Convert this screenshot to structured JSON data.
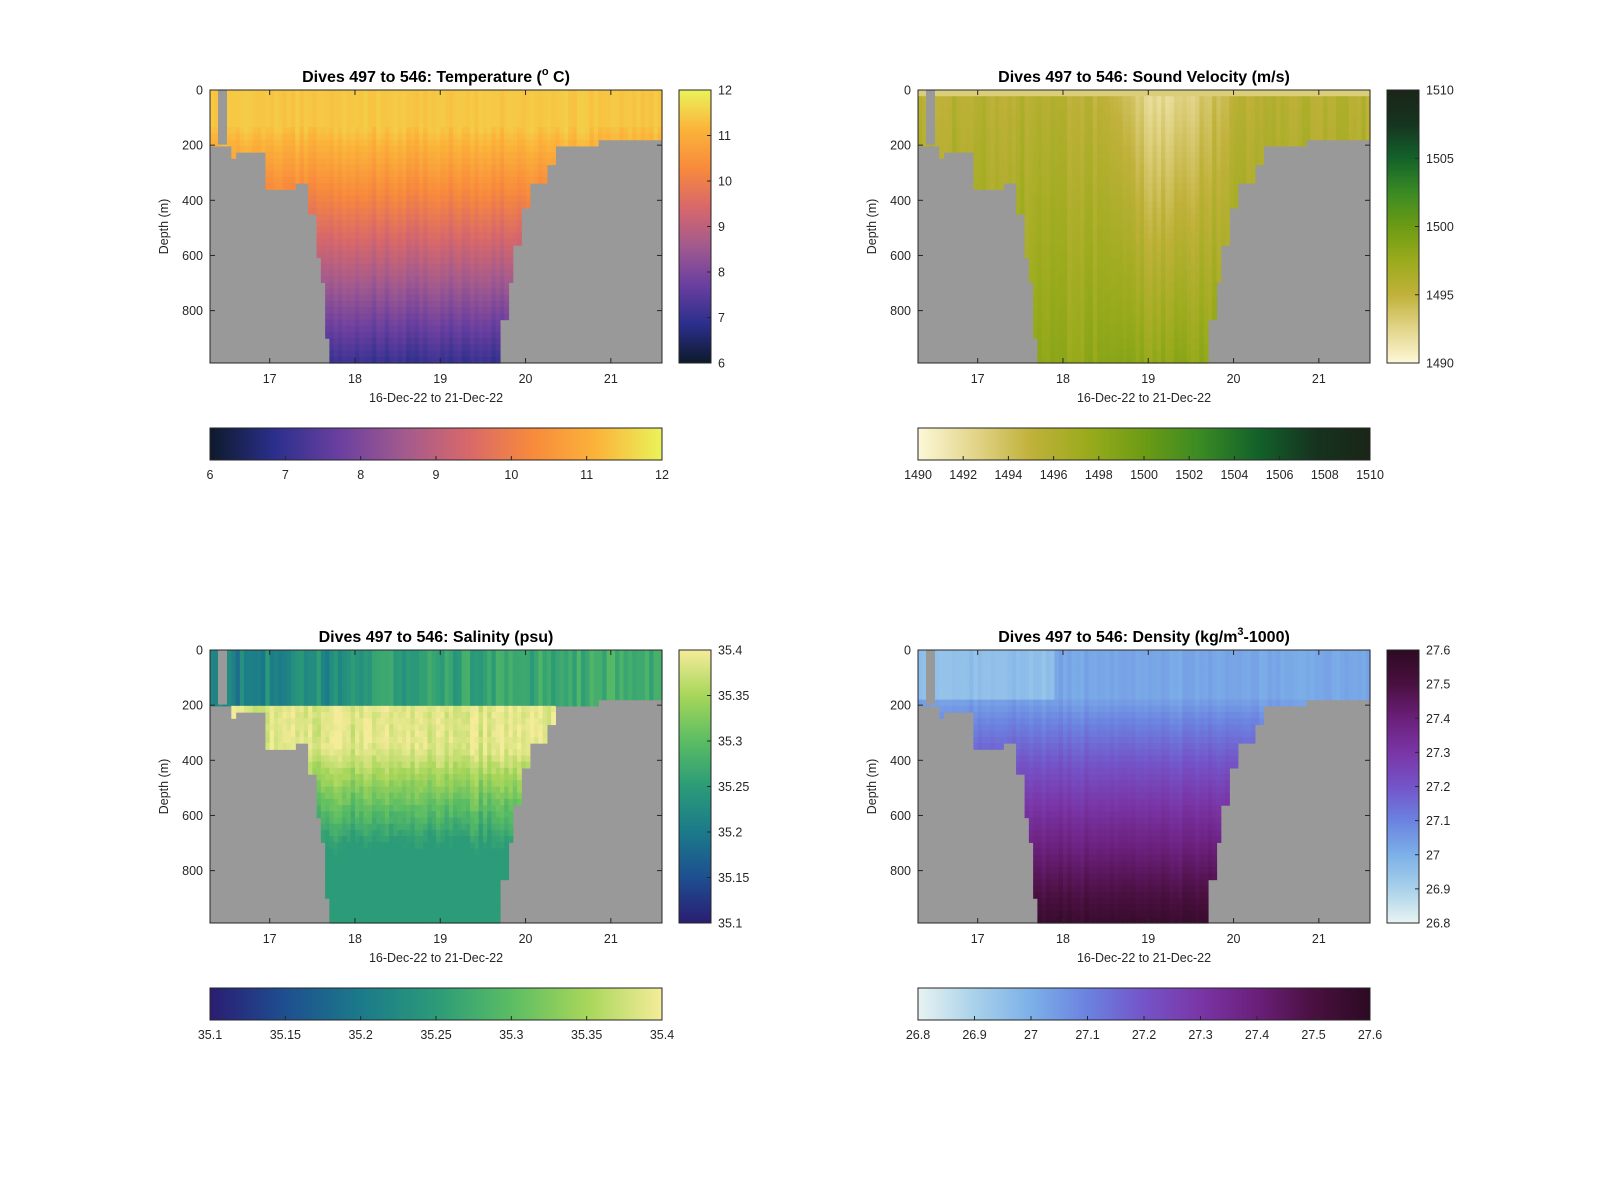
{
  "figure": {
    "background": "#ffffff",
    "land_color": "#999999"
  },
  "chart_data": [
    {
      "type": "heatmap",
      "key": "temperature",
      "title_main": "Dives 497 to 546: Temperature (",
      "title_sup": "o",
      "title_end": " C)",
      "xlabel": "16-Dec-22 to 21-Dec-22",
      "ylabel": "Depth (m)",
      "x_range": [
        16.3,
        21.6
      ],
      "x_ticks": [
        "17",
        "18",
        "19",
        "20",
        "21"
      ],
      "y_range": [
        0,
        990
      ],
      "y_ticks": [
        "0",
        "200",
        "400",
        "600",
        "800"
      ],
      "colorbar_range": [
        6,
        12
      ],
      "colorbar_right_ticks": [
        "6",
        "7",
        "8",
        "9",
        "10",
        "11",
        "12"
      ],
      "colorbar_bottom_ticks": [
        "6",
        "7",
        "8",
        "9",
        "10",
        "11",
        "12"
      ],
      "colormap": [
        "#0e1a2b",
        "#2b2f8c",
        "#6a3fa0",
        "#a25a8e",
        "#d8686a",
        "#f88a3c",
        "#fbb43a",
        "#eaf35a"
      ],
      "surface_value": 11.4,
      "bottom_value": 7.3
    },
    {
      "type": "heatmap",
      "key": "sound_velocity",
      "title_main": "Dives 497 to 546: Sound Velocity (m/s)",
      "title_sup": "",
      "title_end": "",
      "xlabel": "16-Dec-22 to 21-Dec-22",
      "ylabel": "Depth (m)",
      "x_range": [
        16.3,
        21.6
      ],
      "x_ticks": [
        "17",
        "18",
        "19",
        "20",
        "21"
      ],
      "y_range": [
        0,
        990
      ],
      "y_ticks": [
        "0",
        "200",
        "400",
        "600",
        "800"
      ],
      "colorbar_range": [
        1490,
        1510
      ],
      "colorbar_right_ticks": [
        "1490",
        "1495",
        "1500",
        "1505",
        "1510"
      ],
      "colorbar_bottom_ticks": [
        "1490",
        "1492",
        "1494",
        "1496",
        "1498",
        "1500",
        "1502",
        "1504",
        "1506",
        "1508",
        "1510"
      ],
      "colormap": [
        "#fdf8d8",
        "#e2d58a",
        "#c0b13a",
        "#9aab1c",
        "#6c9b14",
        "#3a8a24",
        "#13622a",
        "#163420",
        "#1a2517"
      ],
      "surface_value": 1495.5,
      "bottom_value": 1497.8
    },
    {
      "type": "heatmap",
      "key": "salinity",
      "title_main": "Dives 497 to 546: Salinity (psu)",
      "title_sup": "",
      "title_end": "",
      "xlabel": "16-Dec-22 to 21-Dec-22",
      "ylabel": "Depth (m)",
      "x_range": [
        16.3,
        21.6
      ],
      "x_ticks": [
        "17",
        "18",
        "19",
        "20",
        "21"
      ],
      "y_range": [
        0,
        990
      ],
      "y_ticks": [
        "0",
        "200",
        "400",
        "600",
        "800"
      ],
      "colorbar_range": [
        35.1,
        35.4
      ],
      "colorbar_right_ticks": [
        "35.1",
        "35.15",
        "35.2",
        "35.25",
        "35.3",
        "35.35",
        "35.4"
      ],
      "colorbar_bottom_ticks": [
        "35.1",
        "35.15",
        "35.2",
        "35.25",
        "35.3",
        "35.35",
        "35.4"
      ],
      "colormap": [
        "#2a1d72",
        "#1e4f90",
        "#1b7a8a",
        "#2b9b78",
        "#5bbd63",
        "#a7d65a",
        "#f5ec9a"
      ],
      "surface_value": 35.27,
      "bottom_value": 35.26
    },
    {
      "type": "heatmap",
      "key": "density",
      "title_main": "Dives 497 to 546: Density (kg/m",
      "title_sup": "3",
      "title_end": "-1000)",
      "xlabel": "16-Dec-22 to 21-Dec-22",
      "ylabel": "Depth (m)",
      "x_range": [
        16.3,
        21.6
      ],
      "x_ticks": [
        "17",
        "18",
        "19",
        "20",
        "21"
      ],
      "y_range": [
        0,
        990
      ],
      "y_ticks": [
        "0",
        "200",
        "400",
        "600",
        "800"
      ],
      "colorbar_range": [
        26.8,
        27.6
      ],
      "colorbar_right_ticks": [
        "26.8",
        "26.9",
        "27",
        "27.1",
        "27.2",
        "27.3",
        "27.4",
        "27.5",
        "27.6"
      ],
      "colorbar_bottom_ticks": [
        "26.8",
        "26.9",
        "27",
        "27.1",
        "27.2",
        "27.3",
        "27.4",
        "27.5",
        "27.6"
      ],
      "colormap": [
        "#e8f3f2",
        "#a9d1ea",
        "#7cb0e8",
        "#6b82e0",
        "#7454c8",
        "#7a35a6",
        "#6a1f7a",
        "#4a1040",
        "#2c0a22"
      ],
      "surface_value": 27.02,
      "bottom_value": 27.5
    }
  ]
}
